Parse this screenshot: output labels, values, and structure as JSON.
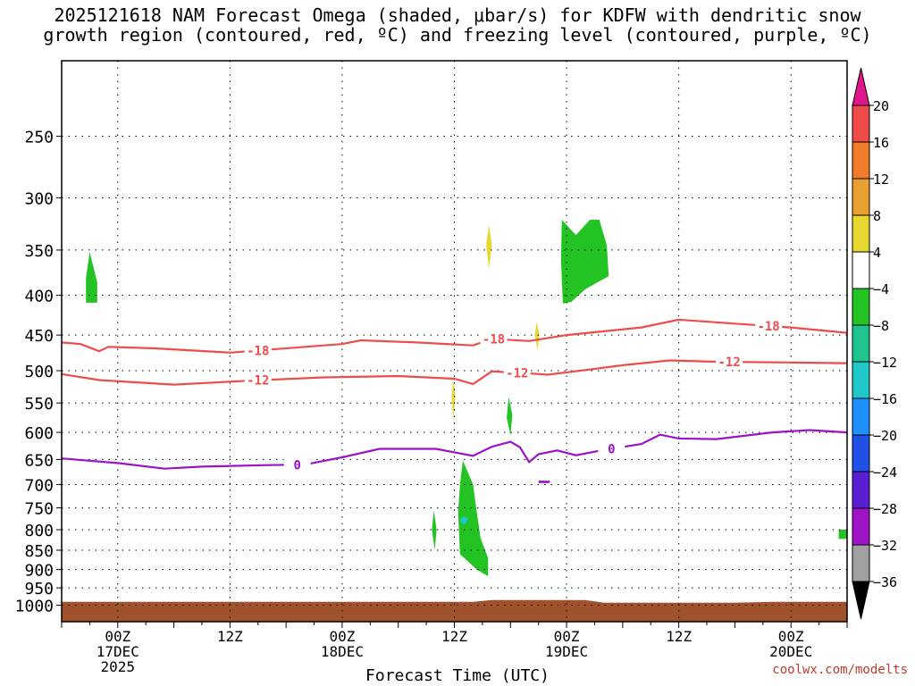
{
  "title_line1": "2025121618 NAM Forecast Omega (shaded, μbar/s) for KDFW with dendritic snow",
  "title_line2": "growth region (contoured, red, ºC) and freezing level (contoured, purple, ºC)",
  "credit": "coolwx.com/modelts",
  "chart_data": {
    "type": "time-height",
    "title": "2025121618 NAM Forecast Omega (shaded, μbar/s) for KDFW with dendritic snow growth region (contoured, red, ºC) and freezing level (contoured, purple, ºC)",
    "xlabel": "Forecast Time (UTC)",
    "ylabel": "",
    "xlim": [
      "2025-12-16 18Z",
      "2025-12-20 06Z"
    ],
    "ylim": [
      1050,
      200
    ],
    "yscale": "log",
    "grid": true,
    "y_ticks": [
      250,
      300,
      350,
      400,
      450,
      500,
      550,
      600,
      650,
      700,
      750,
      800,
      850,
      900,
      950,
      1000
    ],
    "x_ticks": [
      {
        "h": 6,
        "lines": [
          "00Z",
          "17DEC",
          "2025"
        ]
      },
      {
        "h": 18,
        "lines": [
          "12Z"
        ]
      },
      {
        "h": 30,
        "lines": [
          "00Z",
          "18DEC"
        ]
      },
      {
        "h": 42,
        "lines": [
          "12Z"
        ]
      },
      {
        "h": 54,
        "lines": [
          "00Z",
          "19DEC"
        ]
      },
      {
        "h": 66,
        "lines": [
          "12Z"
        ]
      },
      {
        "h": 78,
        "lines": [
          "00Z",
          "20DEC"
        ]
      }
    ],
    "colorbar": {
      "labels": [
        "20",
        "16",
        "12",
        "8",
        "4",
        "−4",
        "−8",
        "−12",
        "−16",
        "−20",
        "−24",
        "−28",
        "−32",
        "−36"
      ],
      "colors": [
        "#f04b4b",
        "#f07b28",
        "#e8a030",
        "#e6d830",
        "#ffffff",
        "#22c322",
        "#1fc38f",
        "#1ec8c8",
        "#1e90ff",
        "#2050e6",
        "#5a1ed2",
        "#a014c8",
        "#a0a0a0"
      ],
      "over_color": "#e0168c",
      "under_color": "#000000"
    },
    "series": [
      {
        "name": "-18",
        "color": "#f04b4b",
        "label_at": [
          25,
          55,
          90
        ],
        "points": [
          [
            0,
            460
          ],
          [
            2,
            462
          ],
          [
            4,
            472
          ],
          [
            5,
            466
          ],
          [
            10,
            468
          ],
          [
            18,
            474
          ],
          [
            30,
            462
          ],
          [
            32,
            457
          ],
          [
            38,
            460
          ],
          [
            44,
            464
          ],
          [
            46,
            455
          ],
          [
            50,
            458
          ],
          [
            54,
            450
          ],
          [
            62,
            440
          ],
          [
            66,
            430
          ],
          [
            72,
            435
          ],
          [
            78,
            440
          ],
          [
            84,
            447
          ]
        ]
      },
      {
        "name": "-12",
        "color": "#f04b4b",
        "label_at": [
          25,
          58,
          85
        ],
        "points": [
          [
            0,
            505
          ],
          [
            4,
            514
          ],
          [
            12,
            521
          ],
          [
            20,
            515
          ],
          [
            28,
            510
          ],
          [
            36,
            508
          ],
          [
            42,
            512
          ],
          [
            44,
            520
          ],
          [
            46,
            501
          ],
          [
            50,
            504
          ],
          [
            52,
            506
          ],
          [
            56,
            499
          ],
          [
            60,
            492
          ],
          [
            65,
            485
          ],
          [
            70,
            487
          ],
          [
            78,
            488
          ],
          [
            84,
            489
          ]
        ]
      },
      {
        "name": "0",
        "color": "#9b12c8",
        "label_at": [
          30,
          70
        ],
        "points": [
          [
            0,
            648
          ],
          [
            6,
            657
          ],
          [
            11,
            668
          ],
          [
            15,
            664
          ],
          [
            22,
            661
          ],
          [
            26,
            660
          ],
          [
            30,
            646
          ],
          [
            34,
            630
          ],
          [
            40,
            630
          ],
          [
            44,
            643
          ],
          [
            46,
            626
          ],
          [
            48,
            617
          ],
          [
            49,
            627
          ],
          [
            50,
            655
          ],
          [
            51,
            640
          ],
          [
            53,
            633
          ],
          [
            55,
            642
          ],
          [
            58,
            632
          ],
          [
            62,
            621
          ],
          [
            64,
            604
          ],
          [
            66,
            611
          ],
          [
            70,
            612
          ],
          [
            76,
            600
          ],
          [
            80,
            596
          ],
          [
            84,
            600
          ]
        ]
      }
    ],
    "omega_cells": [
      {
        "color": "#22c322",
        "pts": [
          [
            3,
            352
          ],
          [
            3.8,
            385
          ],
          [
            3.8,
            409
          ],
          [
            2.6,
            409
          ],
          [
            2.6,
            380
          ]
        ]
      },
      {
        "color": "#22c322",
        "pts": [
          [
            53.5,
            320
          ],
          [
            55,
            335
          ],
          [
            56.5,
            320
          ],
          [
            57.5,
            320
          ],
          [
            58.3,
            345
          ],
          [
            58.5,
            378
          ],
          [
            56,
            393
          ],
          [
            54.5,
            408
          ],
          [
            53.6,
            410
          ],
          [
            53.4,
            360
          ]
        ]
      },
      {
        "color": "#e6d830",
        "pts": [
          [
            45.7,
            325
          ],
          [
            46.0,
            345
          ],
          [
            45.7,
            370
          ],
          [
            45.4,
            345
          ]
        ]
      },
      {
        "color": "#e6d830",
        "pts": [
          [
            50.8,
            433
          ],
          [
            51.1,
            450
          ],
          [
            50.9,
            470
          ],
          [
            50.6,
            450
          ]
        ]
      },
      {
        "color": "#e6d830",
        "pts": [
          [
            41.9,
            512
          ],
          [
            42.1,
            540
          ],
          [
            41.9,
            578
          ],
          [
            41.7,
            540
          ]
        ]
      },
      {
        "color": "#22c322",
        "pts": [
          [
            47.8,
            540
          ],
          [
            48.2,
            570
          ],
          [
            48.0,
            605
          ],
          [
            47.6,
            575
          ]
        ]
      },
      {
        "color": "#22c322",
        "pts": [
          [
            42.9,
            652
          ],
          [
            44,
            700
          ],
          [
            44.4,
            760
          ],
          [
            44.8,
            820
          ],
          [
            45.6,
            870
          ],
          [
            45.6,
            918
          ],
          [
            44.4,
            900
          ],
          [
            42.6,
            860
          ],
          [
            42.4,
            760
          ],
          [
            42.6,
            700
          ]
        ]
      },
      {
        "color": "#1ec8c8",
        "pts": [
          [
            43.0,
            768
          ],
          [
            43.5,
            775
          ],
          [
            43.0,
            790
          ],
          [
            42.6,
            778
          ]
        ]
      },
      {
        "color": "#22c322",
        "pts": [
          [
            39.8,
            755
          ],
          [
            40.1,
            800
          ],
          [
            39.9,
            850
          ],
          [
            39.6,
            800
          ]
        ]
      },
      {
        "color": "#9b12c8",
        "pts": [
          [
            51.0,
            692
          ],
          [
            52.2,
            692
          ],
          [
            52.2,
            697
          ],
          [
            51.0,
            697
          ]
        ]
      },
      {
        "color": "#22c322",
        "pts": [
          [
            83.1,
            800
          ],
          [
            84,
            800
          ],
          [
            84,
            822
          ],
          [
            83.1,
            822
          ]
        ]
      }
    ],
    "terrain": {
      "color": "#a0522d",
      "pressure": 990
    }
  }
}
